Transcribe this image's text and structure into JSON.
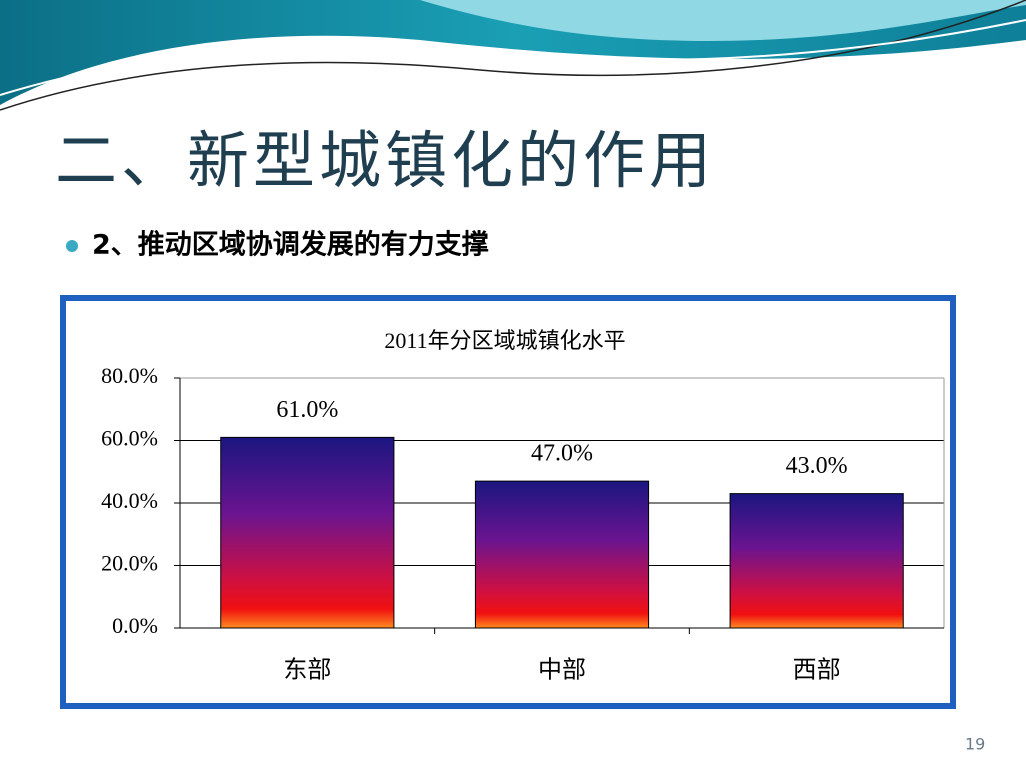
{
  "slide": {
    "title": "二、新型城镇化的作用",
    "bullet": "2、推动区域协调发展的有力支撑",
    "page_number": 19
  },
  "chart_data": {
    "type": "bar",
    "title": "2011年分区域城镇化水平",
    "categories": [
      "东部",
      "中部",
      "西部"
    ],
    "values": [
      61,
      47,
      43
    ],
    "value_labels": [
      "61.0%",
      "47.0%",
      "43.0%"
    ],
    "ylim": [
      0,
      80
    ],
    "yticks": [
      {
        "value": 0,
        "label": "0.0%"
      },
      {
        "value": 20,
        "label": "20.0%"
      },
      {
        "value": 40,
        "label": "40.0%"
      },
      {
        "value": 60,
        "label": "60.0%"
      },
      {
        "value": 80,
        "label": "80.0%"
      }
    ],
    "grid": true
  }
}
